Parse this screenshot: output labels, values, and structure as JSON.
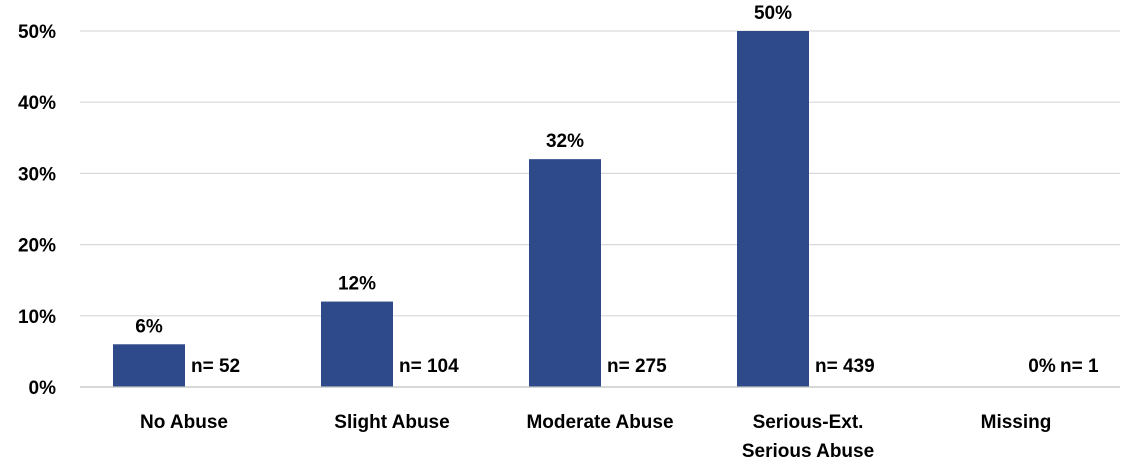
{
  "chart_data": {
    "type": "bar",
    "categories": [
      [
        "No Abuse"
      ],
      [
        "Slight Abuse"
      ],
      [
        "Moderate Abuse"
      ],
      [
        "Serious-Ext.",
        "Serious Abuse"
      ],
      [
        "Missing"
      ]
    ],
    "values": [
      6,
      12,
      32,
      50,
      0
    ],
    "value_labels": [
      "6%",
      "12%",
      "32%",
      "50%",
      "0%"
    ],
    "counts": [
      "n= 52",
      "n= 104",
      "n= 275",
      "n= 439",
      "n= 1"
    ],
    "ylim": [
      0,
      50
    ],
    "yticks": [
      0,
      10,
      20,
      30,
      40,
      50
    ],
    "ytick_labels": [
      "0%",
      "10%",
      "20%",
      "30%",
      "40%",
      "50%"
    ],
    "title": "",
    "xlabel": "",
    "ylabel": "",
    "grid": true,
    "bar_color": "#2e4a8a"
  }
}
